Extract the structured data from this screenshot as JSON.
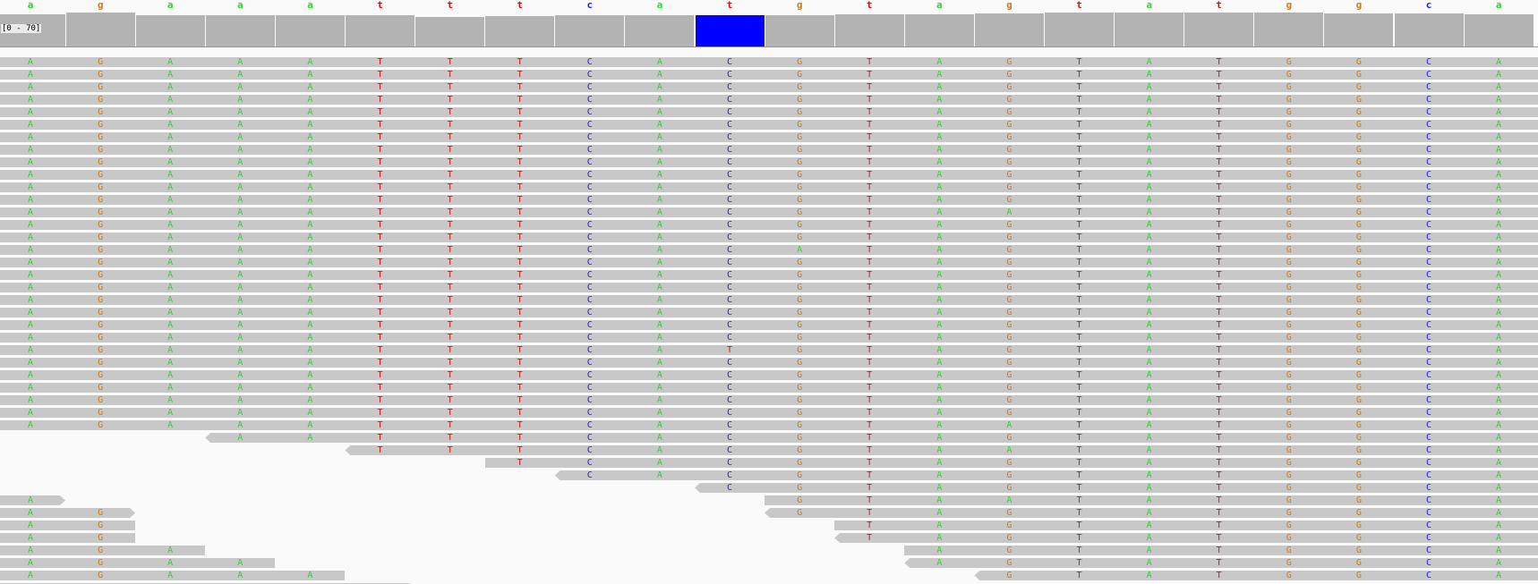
{
  "coverage_label": "[0 - 70]",
  "colors": {
    "A": "#22dd22",
    "C": "#2222ee",
    "G": "#cc7a1a",
    "T": "#dd1111",
    "read_fill": "#c8c8c8",
    "coverage_fill": "#b3b3b3",
    "highlight": "#0000ff"
  },
  "reference": [
    "a",
    "g",
    "a",
    "a",
    "a",
    "t",
    "t",
    "t",
    "c",
    "a",
    "t",
    "g",
    "t",
    "a",
    "g",
    "t",
    "a",
    "t",
    "g",
    "g",
    "c",
    "a"
  ],
  "highlight_column": 10,
  "coverage_levels": [
    0.95,
    1.0,
    0.93,
    0.93,
    0.93,
    0.93,
    0.88,
    0.9,
    0.92,
    0.92,
    0.93,
    0.93,
    0.95,
    0.95,
    0.97,
    1.0,
    1.0,
    1.0,
    1.0,
    0.97,
    0.97,
    0.95
  ],
  "reads": [
    {
      "start": 0,
      "end": 21,
      "seq": "AGAAATTTCACGTAGTATGGCA"
    },
    {
      "start": 0,
      "end": 21,
      "seq": "AGAAATTTCACGTAGTATGGCA"
    },
    {
      "start": 0,
      "end": 21,
      "seq": "AGAAATTTCACGTAGTATGGCA"
    },
    {
      "start": 0,
      "end": 21,
      "seq": "AGAAATTTCACGTAGTATGGCA"
    },
    {
      "start": 0,
      "end": 21,
      "seq": "AGAAATTTCACGTAGTATGGCA"
    },
    {
      "start": 0,
      "end": 21,
      "seq": "AGAAATTTCACGTAGTATGGCA"
    },
    {
      "start": 0,
      "end": 21,
      "seq": "AGAAATTTCACGTAGTATGGCA"
    },
    {
      "start": 0,
      "end": 21,
      "seq": "AGAAATTTCACGTAGTATGGCA"
    },
    {
      "start": 0,
      "end": 21,
      "seq": "AGAAATTTCACGTAGTATGGCA"
    },
    {
      "start": 0,
      "end": 21,
      "seq": "AGAAATTTCACGTAGTATGGCA"
    },
    {
      "start": 0,
      "end": 21,
      "seq": "AGAAATTTCACGTAGTATGGCA"
    },
    {
      "start": 0,
      "end": 21,
      "seq": "AGAAATTTCACGTAGTATGGCA"
    },
    {
      "start": 0,
      "end": 21,
      "seq": "AGAAATTTCACGTAATATGGCA"
    },
    {
      "start": 0,
      "end": 21,
      "seq": "AGAAATTTCACGTAGTATGGCA"
    },
    {
      "start": 0,
      "end": 21,
      "seq": "AGAAATTTCACGTAGTATGGCA"
    },
    {
      "start": 0,
      "end": 21,
      "seq": "AGAAATTTCACATAGTATGGCA"
    },
    {
      "start": 0,
      "end": 21,
      "seq": "AGAAATTTCACGTAGTATGGCA"
    },
    {
      "start": 0,
      "end": 21,
      "seq": "AGAAATTTCACGTAGTATGGCA"
    },
    {
      "start": 0,
      "end": 21,
      "seq": "AGAAATTTCACGTAGTATGGCA"
    },
    {
      "start": 0,
      "end": 21,
      "seq": "AGAAATTTCACGTAGTATGGCA"
    },
    {
      "start": 0,
      "end": 21,
      "seq": "AGAAATTTCACGTAGTATGGCA"
    },
    {
      "start": 0,
      "end": 21,
      "seq": "AGAAATTTCACGTAGTATGGCA"
    },
    {
      "start": 0,
      "end": 21,
      "seq": "AGAAATTTCACGTAGTATGGCA"
    },
    {
      "start": 0,
      "end": 21,
      "seq": "AGAAATTTCATGTAGTATGGCA"
    },
    {
      "start": 0,
      "end": 21,
      "seq": "AGAAATTTCACGTAGTATGGCA"
    },
    {
      "start": 0,
      "end": 21,
      "seq": "AGAAATTTCACGTAGTATGGCA"
    },
    {
      "start": 0,
      "end": 21,
      "seq": "AGAAATTTCACGTAGTATGGCA"
    },
    {
      "start": 0,
      "end": 21,
      "seq": "AGAAATTTCACGTAGTATGGCA"
    },
    {
      "start": 0,
      "end": 21,
      "seq": "AGAAATTTCACGTAGTATGGCA"
    },
    {
      "start": 0,
      "end": 21,
      "seq": "AGAAATTTCACGTAATATGGCA"
    },
    {
      "start": 3,
      "end": 21,
      "seq": "AATTTCACGTAGTATGGCA",
      "arrow": "left"
    },
    {
      "start": 5,
      "end": 21,
      "seq": "TTTCACGTAATATGGCA",
      "arrow": "left"
    },
    {
      "start": 7,
      "end": 21,
      "seq": "TCACGTAGTATGGCA"
    },
    {
      "start": 8,
      "end": 21,
      "seq": "CACGTAGTATGGCA",
      "arrow": "left"
    },
    {
      "start": 10,
      "end": 21,
      "seq": "CGTAGTATGGCA",
      "arrow": "left"
    },
    {
      "start": 0,
      "end": 0,
      "seq": "A",
      "arrow": "right"
    },
    {
      "start": 11,
      "end": 21,
      "seq": "GTAATATGGCA"
    },
    {
      "start": 0,
      "end": 1,
      "seq": "AG",
      "arrow": "right"
    },
    {
      "start": 11,
      "end": 21,
      "seq": "GTAGTATGGCA",
      "arrow": "left"
    },
    {
      "start": 0,
      "end": 1,
      "seq": "AG"
    },
    {
      "start": 12,
      "end": 21,
      "seq": "TAGTATGGCA"
    },
    {
      "start": 0,
      "end": 1,
      "seq": "AG"
    },
    {
      "start": 12,
      "end": 21,
      "seq": "TAGTATGGCA",
      "arrow": "left"
    },
    {
      "start": 0,
      "end": 2,
      "seq": "AGA"
    },
    {
      "start": 13,
      "end": 21,
      "seq": "AGTATGGCA"
    },
    {
      "start": 0,
      "end": 3,
      "seq": "AGAA"
    },
    {
      "start": 13,
      "end": 21,
      "seq": "AGTATGGCA",
      "arrow": "left"
    },
    {
      "start": 0,
      "end": 4,
      "seq": "AGAAA"
    },
    {
      "start": 14,
      "end": 21,
      "seq": "GTATGGCA",
      "arrow": "left"
    },
    {
      "start": 0,
      "end": 5,
      "seq": "AGAAAT",
      "arrow": "right"
    }
  ]
}
